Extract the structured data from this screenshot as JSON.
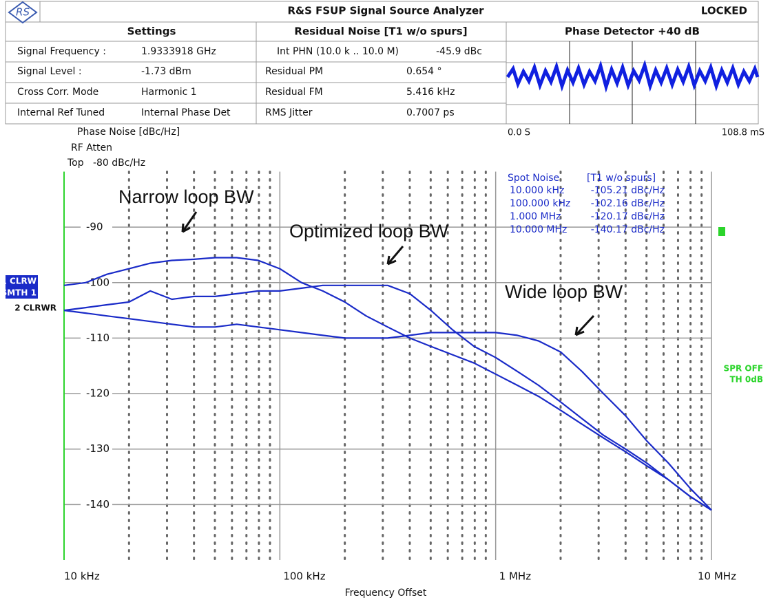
{
  "header": {
    "logo": "RS",
    "title": "R&S FSUP Signal Source Analyzer",
    "status": "LOCKED"
  },
  "settings": {
    "heading": "Settings",
    "rows": [
      [
        "Signal Frequency :",
        "1.9333918 GHz"
      ],
      [
        "Signal Level :",
        "-1.73 dBm"
      ],
      [
        "Cross Corr. Mode",
        "Harmonic 1"
      ],
      [
        "Internal Ref Tuned",
        "Internal Phase Det"
      ]
    ]
  },
  "residual": {
    "heading": "Residual Noise [T1 w/o spurs]",
    "rows": [
      [
        "Int PHN (10.0 k .. 10.0 M)",
        "-45.9 dBc"
      ],
      [
        "Residual PM",
        "0.654 °"
      ],
      [
        "Residual FM",
        "5.416 kHz"
      ],
      [
        "RMS Jitter",
        "0.7007 ps"
      ]
    ]
  },
  "detector": {
    "heading": "Phase Detector +40 dB",
    "x_start": "0.0 S",
    "x_end": "108.8 mS"
  },
  "spot_noise": {
    "title": "Spot Noise",
    "subtitle": "[T1 w/o spurs]",
    "rows": [
      [
        "10.000 kHz",
        "-105.21 dBc/Hz"
      ],
      [
        "100.000 kHz",
        "-102.16 dBc/Hz"
      ],
      [
        "1.000 MHz",
        "-120.17 dBc/Hz"
      ],
      [
        "10.000 MHz",
        "-140.17 dBc/Hz"
      ]
    ]
  },
  "chart_data": {
    "type": "line",
    "ylabel": "Phase Noise [dBc/Hz]",
    "rf_atten": "RF Atten",
    "top_label": "Top   -80 dBc/Hz",
    "xlabel": "Frequency Offset",
    "trace_labels": [
      "1 CLRW",
      "SMTH 1",
      "2 CLRWR"
    ],
    "status_labels": [
      "SPR OFF",
      "TH 0dB"
    ],
    "xscale": "log",
    "xlim": [
      10000,
      10000000
    ],
    "ylim": [
      -150,
      -80
    ],
    "xticks": [
      {
        "value": 10000,
        "label": "10 kHz"
      },
      {
        "value": 100000,
        "label": "100 kHz"
      },
      {
        "value": 1000000,
        "label": "1 MHz"
      },
      {
        "value": 10000000,
        "label": "10 MHz"
      }
    ],
    "xticks_minor": [
      20000,
      30000,
      40000,
      50000,
      60000,
      70000,
      80000,
      90000,
      200000,
      300000,
      400000,
      500000,
      600000,
      700000,
      800000,
      900000,
      2000000,
      3000000,
      4000000,
      5000000,
      6000000,
      7000000,
      8000000,
      9000000
    ],
    "yticks": [
      -90,
      -100,
      -110,
      -120,
      -130,
      -140
    ],
    "grid": true,
    "x": [
      10000,
      12600,
      15800,
      20000,
      25100,
      31600,
      40000,
      50100,
      63100,
      79400,
      100000,
      126000,
      158000,
      200000,
      251000,
      316000,
      400000,
      501000,
      631000,
      794000,
      1000000,
      1260000,
      1580000,
      2000000,
      2510000,
      3160000,
      4000000,
      5010000,
      6310000,
      7940000,
      10000000
    ],
    "series": [
      {
        "name": "Narrow loop BW",
        "color": "#1a2bc8",
        "values": [
          -100.5,
          -100,
          -98.5,
          -97.5,
          -96.5,
          -96,
          -95.8,
          -95.5,
          -95.5,
          -96,
          -97.5,
          -100,
          -101.5,
          -103.5,
          -106,
          -108,
          -110,
          -111.5,
          -113,
          -114.5,
          -116.5,
          -118.5,
          -120.5,
          -123,
          -125.5,
          -128,
          -130.5,
          -133,
          -135.5,
          -138.5,
          -141
        ]
      },
      {
        "name": "Optimized loop BW",
        "color": "#1a2bc8",
        "values": [
          -105,
          -104.5,
          -104,
          -103.5,
          -101.5,
          -103,
          -102.5,
          -102.5,
          -102,
          -101.5,
          -101.5,
          -101,
          -100.5,
          -100.5,
          -100.5,
          -100.5,
          -102,
          -105,
          -108.5,
          -111.5,
          -113.5,
          -116,
          -118.5,
          -121.5,
          -124.5,
          -127.5,
          -130,
          -132.5,
          -135.5,
          -138.5,
          -141
        ]
      },
      {
        "name": "Wide loop BW",
        "color": "#1a2bc8",
        "values": [
          -105,
          -105.5,
          -106,
          -106.5,
          -107,
          -107.5,
          -108,
          -108,
          -107.5,
          -108,
          -108.5,
          -109,
          -109.5,
          -110,
          -110,
          -110,
          -109.5,
          -109,
          -109,
          -109,
          -109,
          -109.5,
          -110.5,
          -112.5,
          -116,
          -120,
          -124,
          -128.5,
          -132.5,
          -137,
          -141
        ]
      }
    ]
  }
}
